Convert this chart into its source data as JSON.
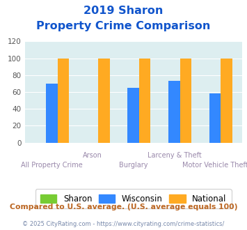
{
  "title_line1": "2019 Sharon",
  "title_line2": "Property Crime Comparison",
  "categories": [
    "All Property Crime",
    "Arson",
    "Burglary",
    "Larceny & Theft",
    "Motor Vehicle Theft"
  ],
  "cat_upper": [
    "",
    "Arson",
    "",
    "Larceny & Theft",
    ""
  ],
  "cat_lower": [
    "All Property Crime",
    "",
    "Burglary",
    "",
    "Motor Vehicle Theft"
  ],
  "sharon_values": [
    0,
    0,
    0,
    0,
    0
  ],
  "wisconsin_values": [
    70,
    0,
    65,
    73,
    58
  ],
  "national_values": [
    100,
    100,
    100,
    100,
    100
  ],
  "sharon_color": "#77cc33",
  "wisconsin_color": "#3388ff",
  "national_color": "#ffaa22",
  "ylim": [
    0,
    120
  ],
  "yticks": [
    0,
    20,
    40,
    60,
    80,
    100,
    120
  ],
  "bg_color": "#ddeef0",
  "title_color": "#1155cc",
  "xlabel_color": "#9988aa",
  "footer_color": "#bb6622",
  "footer_text": "Compared to U.S. average. (U.S. average equals 100)",
  "copyright_text": "© 2025 CityRating.com - https://www.cityrating.com/crime-statistics/",
  "copyright_color": "#7788aa",
  "legend_labels": [
    "Sharon",
    "Wisconsin",
    "National"
  ],
  "bar_width": 0.28
}
